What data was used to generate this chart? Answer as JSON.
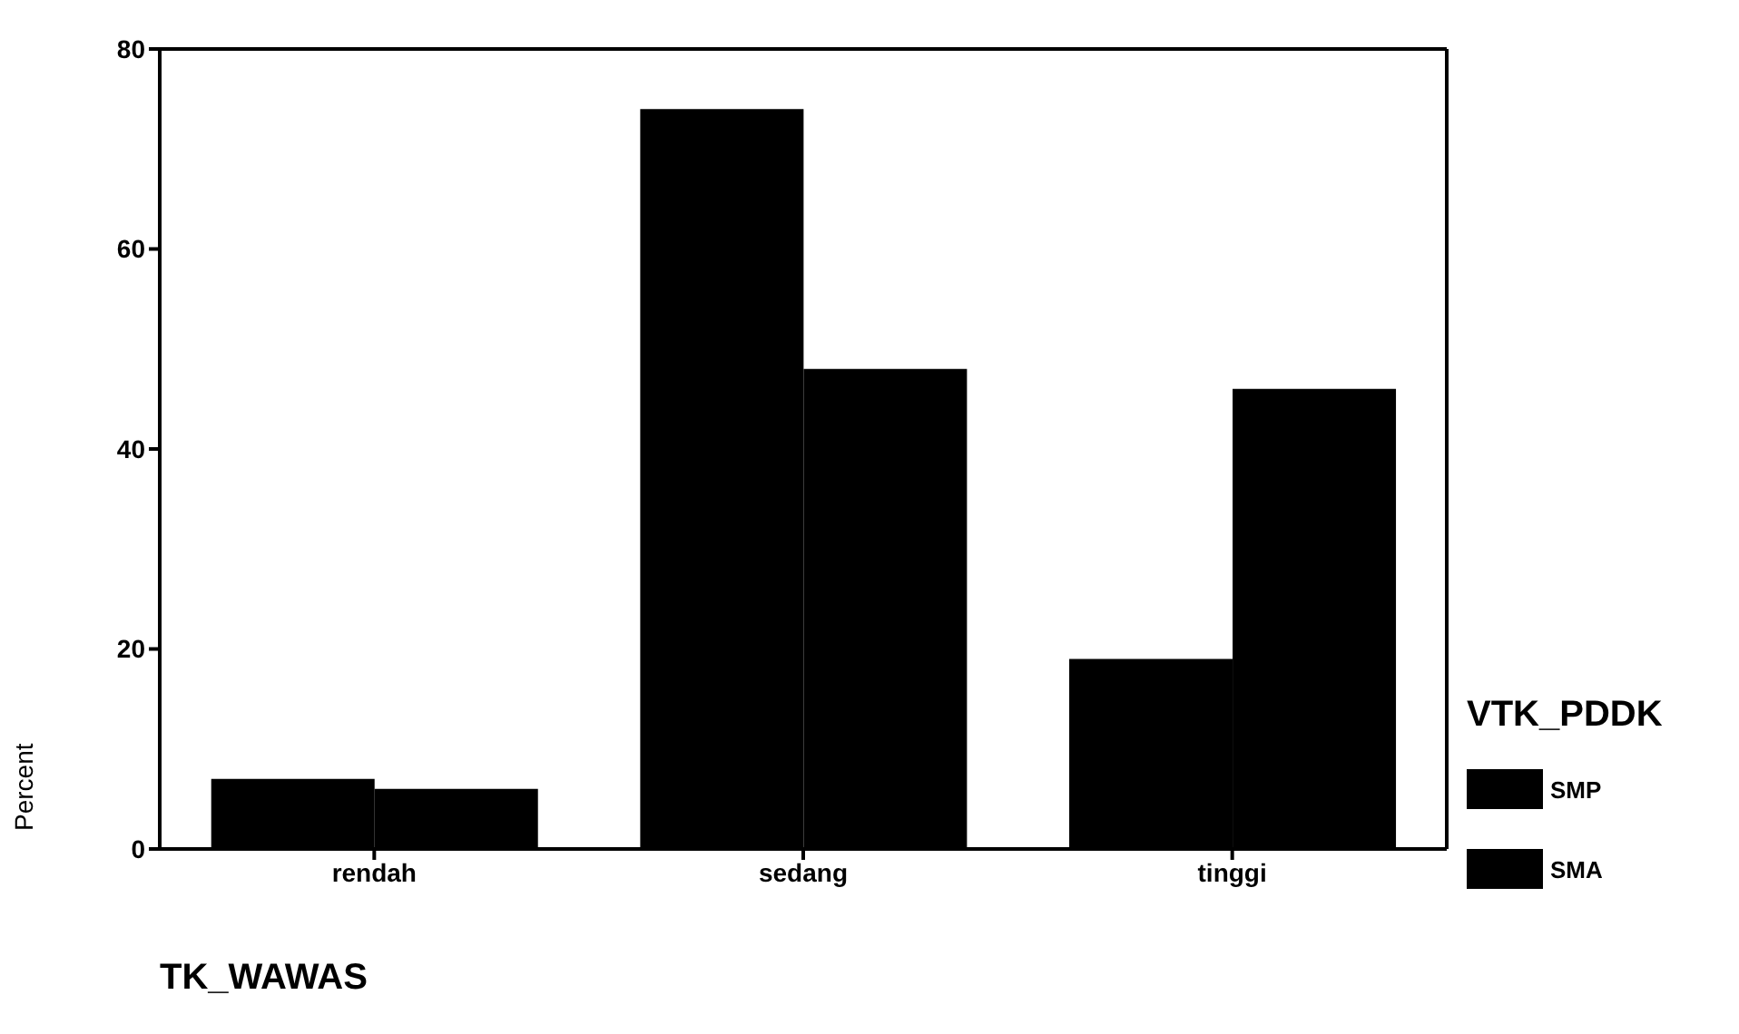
{
  "chart_data": {
    "type": "bar",
    "categories": [
      "rendah",
      "sedang",
      "tinggi"
    ],
    "series": [
      {
        "name": "SMP",
        "color": "#000000",
        "values": [
          7,
          74,
          19
        ]
      },
      {
        "name": "SMA",
        "color": "#000000",
        "values": [
          6,
          48,
          46
        ]
      }
    ],
    "xlabel": "TK_WAWAS",
    "ylabel": "Percent",
    "legend_title": "VTK_PDDK",
    "legend": "right",
    "ylim": [
      0,
      80
    ],
    "yticks": [
      0,
      20,
      40,
      60,
      80
    ],
    "grid": false
  }
}
